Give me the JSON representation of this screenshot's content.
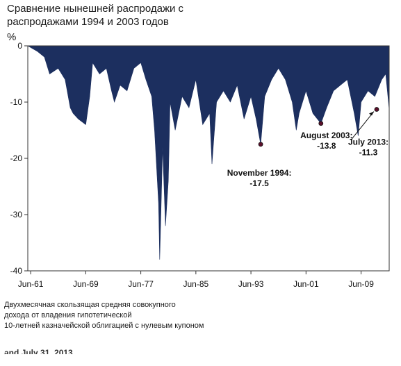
{
  "chart_data": {
    "type": "area",
    "title": "Сравнение нынешней распродажи с распродажами 1994 и 2003 годов",
    "ylabel": "%",
    "ylim": [
      -40,
      0
    ],
    "yticks": [
      0,
      -10,
      -20,
      -30,
      -40
    ],
    "x_range": [
      "1961-01",
      "2013-07"
    ],
    "xticks": [
      "Jun-61",
      "Jun-69",
      "Jun-77",
      "Jun-85",
      "Jun-93",
      "Jun-01",
      "Jun-09"
    ],
    "grid": false,
    "color": "#1c2f5f",
    "series": [
      {
        "x": [
          "1961-01",
          "1962-06",
          "1963-06",
          "1964-03",
          "1965-06",
          "1966-06",
          "1967-03",
          "1967-08",
          "1968-05",
          "1969-06",
          "1970-01",
          "1970-06",
          "1971-06",
          "1972-06",
          "1973-03",
          "1973-08",
          "1974-06",
          "1975-06",
          "1976-06",
          "1977-06",
          "1978-03",
          "1979-01",
          "1979-06",
          "1980-01",
          "1980-03",
          "1980-08",
          "1981-01",
          "1981-06",
          "1981-09",
          "1982-06",
          "1983-06",
          "1984-06",
          "1985-06",
          "1986-06",
          "1987-06",
          "1987-10",
          "1988-06",
          "1989-06",
          "1990-06",
          "1991-06",
          "1992-06",
          "1993-06",
          "1994-03",
          "1994-11",
          "1995-06",
          "1996-06",
          "1997-06",
          "1998-06",
          "1999-06",
          "2000-01",
          "2000-06",
          "2001-06",
          "2002-06",
          "2003-08",
          "2004-06",
          "2005-06",
          "2006-06",
          "2007-06",
          "2008-06",
          "2009-01",
          "2009-06",
          "2010-06",
          "2011-06",
          "2012-06",
          "2013-01",
          "2013-07"
        ],
        "y": [
          0,
          -1,
          -2,
          -5,
          -4,
          -6,
          -11,
          -12,
          -13,
          -14,
          -9,
          -3,
          -5,
          -4,
          -8,
          -10,
          -7,
          -8,
          -4,
          -3,
          -6,
          -9,
          -15,
          -28,
          -38,
          -18,
          -32,
          -24,
          -10,
          -15,
          -9,
          -11,
          -6,
          -14,
          -12,
          -21,
          -10,
          -8,
          -10,
          -7,
          -13,
          -9,
          -13,
          -17.5,
          -9,
          -6,
          -4,
          -6,
          -10,
          -15,
          -12,
          -8,
          -12,
          -13.8,
          -11,
          -8,
          -7,
          -6,
          -12,
          -16,
          -10,
          -8,
          -9,
          -6,
          -5,
          -11.3
        ]
      }
    ],
    "annotations": [
      {
        "label": "November 1994:",
        "value": "-17.5",
        "x": "1994-11",
        "y": -17.5
      },
      {
        "label": "August 2003:",
        "value": "-13.8",
        "x": "2003-08",
        "y": -13.8
      },
      {
        "label": "July 2013:",
        "value": "-11.3",
        "x": "2013-07",
        "y": -11.3
      }
    ]
  },
  "footnote_lines": [
    "Двухмесячная скользящая средняя совокупного",
    "дохода от владения гипотетической",
    "10-летней казначейской облигацией с нулевым купоном"
  ],
  "cut_text": "and July 31, 2013."
}
